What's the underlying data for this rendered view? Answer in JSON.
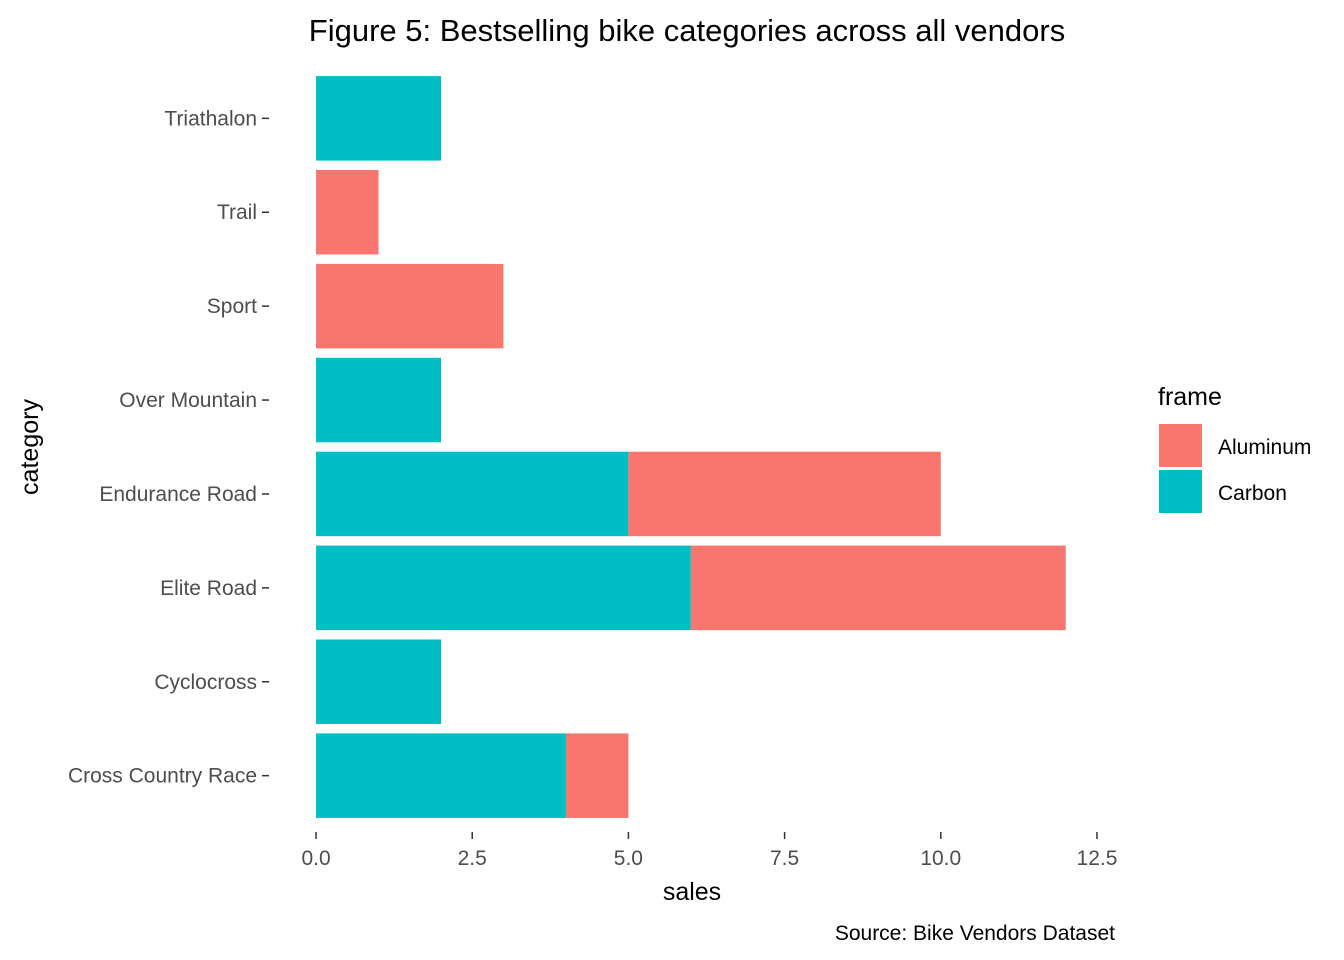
{
  "chart_data": {
    "type": "bar",
    "orientation": "horizontal",
    "stacked": true,
    "title": "Figure 5: Bestselling bike categories across all vendors",
    "xlabel": "sales",
    "ylabel": "category",
    "caption": "Source: Bike Vendors Dataset",
    "categories": [
      "Cross Country Race",
      "Cyclocross",
      "Elite Road",
      "Endurance Road",
      "Over Mountain",
      "Sport",
      "Trail",
      "Triathalon"
    ],
    "series": [
      {
        "name": "Carbon",
        "color": "#00BFC4",
        "values": [
          4,
          2,
          6,
          5,
          2,
          0,
          0,
          2
        ]
      },
      {
        "name": "Aluminum",
        "color": "#F8766D",
        "values": [
          1,
          0,
          6,
          5,
          0,
          3,
          1,
          0
        ]
      }
    ],
    "xlim": [
      0,
      12.5
    ],
    "xticks": [
      "0.0",
      "2.5",
      "5.0",
      "7.5",
      "10.0",
      "12.5"
    ],
    "grid": false,
    "legend": {
      "title": "frame",
      "position": "right",
      "items": [
        {
          "label": "Aluminum",
          "color": "#F8766D"
        },
        {
          "label": "Carbon",
          "color": "#00BFC4"
        }
      ]
    }
  }
}
